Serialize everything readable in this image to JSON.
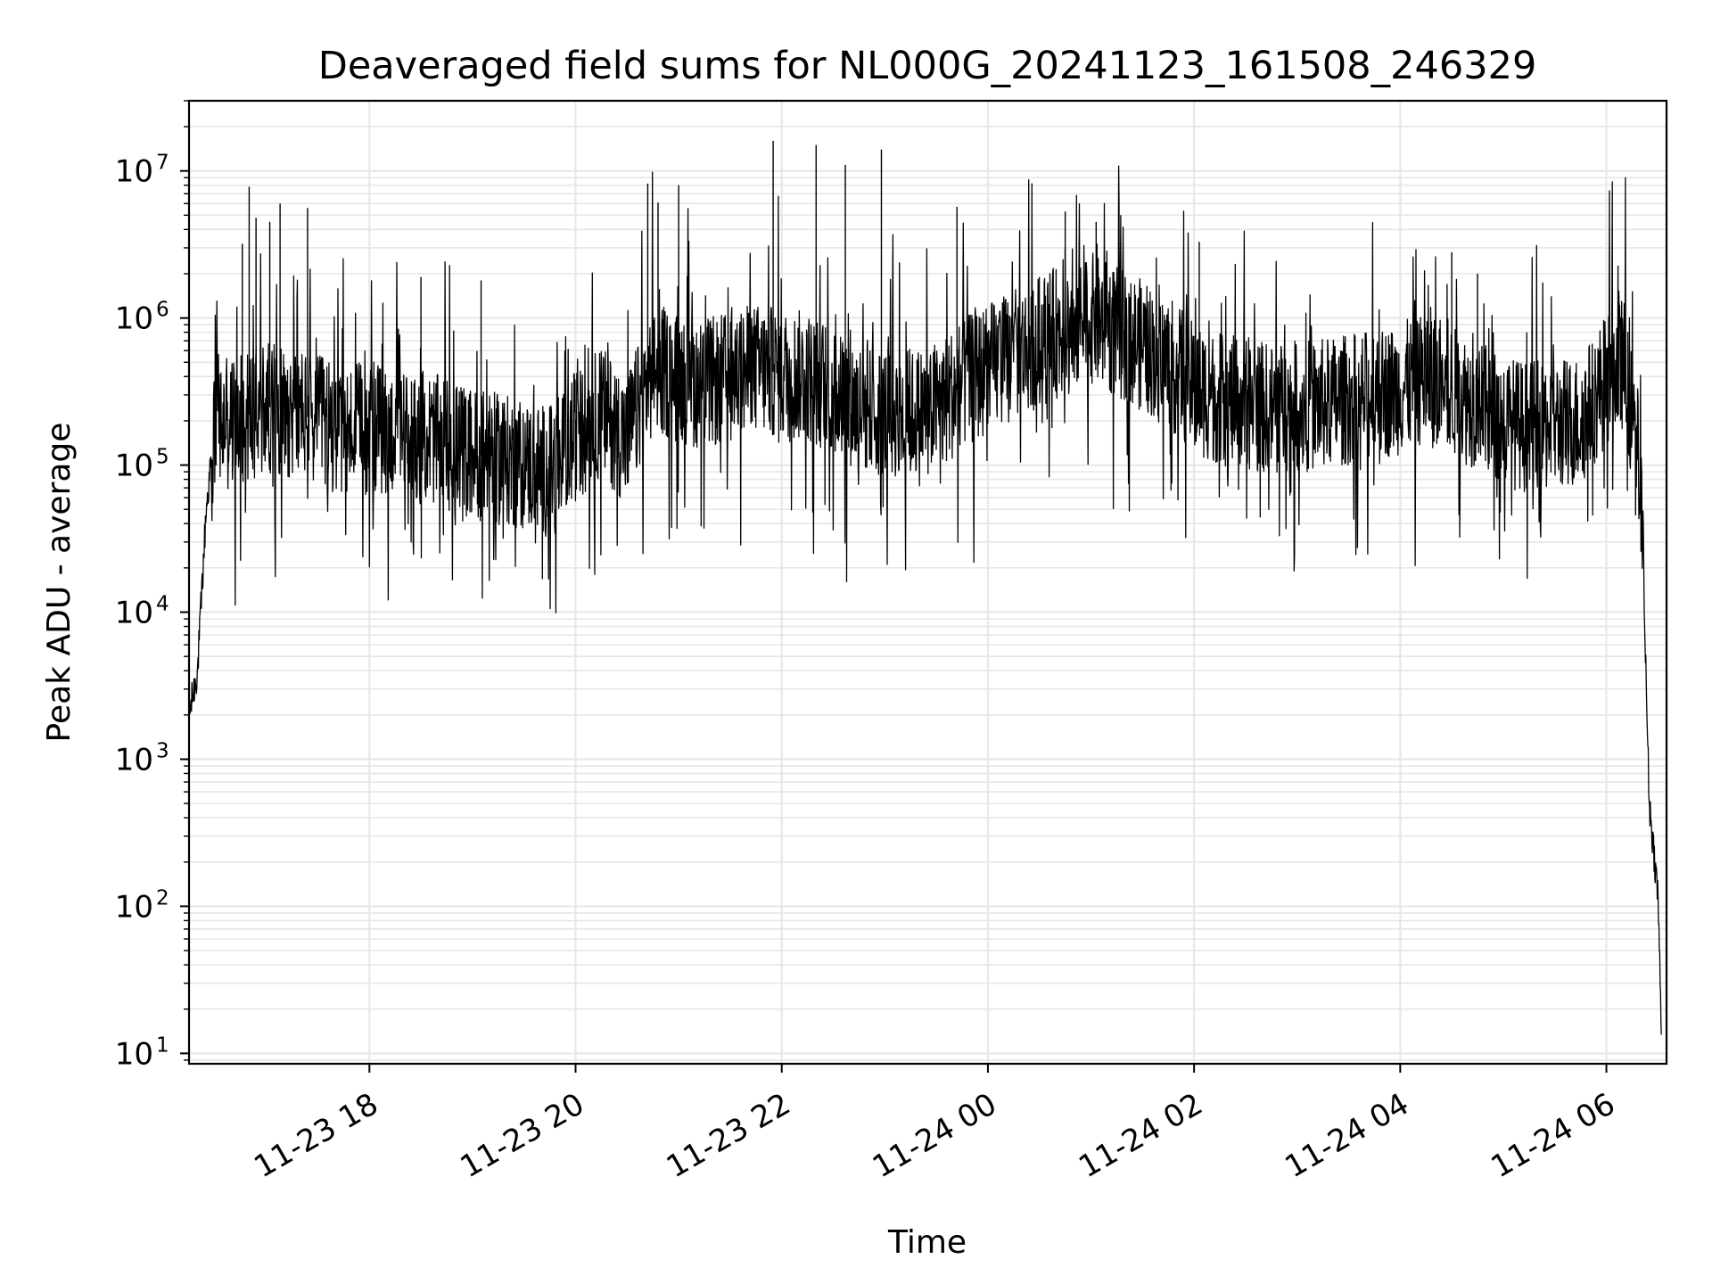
{
  "chart_data": {
    "type": "line",
    "title": "Deaveraged field sums for NL000G_20241123_161508_246329",
    "xlabel": "Time",
    "ylabel": "Peak ADU - average",
    "yscale": "log",
    "ylim": [
      8.5,
      30000000
    ],
    "xlim": [
      "2024-11-23 16:15",
      "2024-11-24 06:35"
    ],
    "grid": true,
    "line_color": "#000000",
    "grid_color": "#e6e6e6",
    "x_ticks": [
      {
        "time": "2024-11-23 18:00",
        "label": "11-23 18"
      },
      {
        "time": "2024-11-23 20:00",
        "label": "11-23 20"
      },
      {
        "time": "2024-11-23 22:00",
        "label": "11-23 22"
      },
      {
        "time": "2024-11-24 00:00",
        "label": "11-24 00"
      },
      {
        "time": "2024-11-24 02:00",
        "label": "11-24 02"
      },
      {
        "time": "2024-11-24 04:00",
        "label": "11-24 04"
      },
      {
        "time": "2024-11-24 06:00",
        "label": "11-24 06"
      }
    ],
    "y_ticks": [
      {
        "value": 10,
        "base": "10",
        "exp": "1"
      },
      {
        "value": 100,
        "base": "10",
        "exp": "2"
      },
      {
        "value": 1000,
        "base": "10",
        "exp": "3"
      },
      {
        "value": 10000,
        "base": "10",
        "exp": "4"
      },
      {
        "value": 100000,
        "base": "10",
        "exp": "5"
      },
      {
        "value": 1000000,
        "base": "10",
        "exp": "6"
      },
      {
        "value": 10000000,
        "base": "10",
        "exp": "7"
      }
    ],
    "series": [
      {
        "x": [
          "2024-11-23 16:15",
          "2024-11-23 16:20",
          "2024-11-23 16:25",
          "2024-11-23 16:30",
          "2024-11-23 16:40",
          "2024-11-23 16:50",
          "2024-11-23 17:00",
          "2024-11-23 17:15",
          "2024-11-23 17:30",
          "2024-11-23 17:45",
          "2024-11-23 18:00",
          "2024-11-23 18:15",
          "2024-11-23 18:30",
          "2024-11-23 18:45",
          "2024-11-23 19:00",
          "2024-11-23 19:15",
          "2024-11-23 19:30",
          "2024-11-23 19:45",
          "2024-11-23 20:00",
          "2024-11-23 20:15",
          "2024-11-23 20:30",
          "2024-11-23 20:45",
          "2024-11-23 21:00",
          "2024-11-23 21:15",
          "2024-11-23 21:30",
          "2024-11-23 21:45",
          "2024-11-23 22:00",
          "2024-11-23 22:15",
          "2024-11-23 22:30",
          "2024-11-23 22:45",
          "2024-11-23 23:00",
          "2024-11-23 23:15",
          "2024-11-23 23:30",
          "2024-11-23 23:45",
          "2024-11-24 00:00",
          "2024-11-24 00:15",
          "2024-11-24 00:30",
          "2024-11-24 00:45",
          "2024-11-24 01:00",
          "2024-11-24 01:15",
          "2024-11-24 01:30",
          "2024-11-24 01:45",
          "2024-11-24 02:00",
          "2024-11-24 02:15",
          "2024-11-24 02:30",
          "2024-11-24 02:45",
          "2024-11-24 03:00",
          "2024-11-24 03:15",
          "2024-11-24 03:30",
          "2024-11-24 03:45",
          "2024-11-24 04:00",
          "2024-11-24 04:15",
          "2024-11-24 04:30",
          "2024-11-24 04:45",
          "2024-11-24 05:00",
          "2024-11-24 05:15",
          "2024-11-24 05:30",
          "2024-11-24 05:45",
          "2024-11-24 06:00",
          "2024-11-24 06:10",
          "2024-11-24 06:20",
          "2024-11-24 06:25",
          "2024-11-24 06:30",
          "2024-11-24 06:32"
        ],
        "y": [
          2000,
          4000,
          50000,
          180000,
          200000,
          220000,
          250000,
          230000,
          200000,
          170000,
          180000,
          170000,
          160000,
          140000,
          120000,
          110000,
          100000,
          90000,
          160000,
          230000,
          150000,
          450000,
          400000,
          350000,
          400000,
          450000,
          420000,
          400000,
          330000,
          250000,
          230000,
          220000,
          250000,
          350000,
          450000,
          550000,
          700000,
          850000,
          1000000,
          800000,
          650000,
          500000,
          330000,
          280000,
          260000,
          240000,
          250000,
          260000,
          280000,
          300000,
          330000,
          400000,
          320000,
          250000,
          200000,
          180000,
          190000,
          200000,
          380000,
          500000,
          80000,
          500,
          120,
          15
        ],
        "spikes": [
          {
            "x": "2024-11-23 16:46",
            "y": 3200000
          },
          {
            "x": "2024-11-23 16:50",
            "y": 7800000
          },
          {
            "x": "2024-11-23 16:54",
            "y": 4800000
          },
          {
            "x": "2024-11-23 17:02",
            "y": 4500000
          },
          {
            "x": "2024-11-23 17:08",
            "y": 6000000
          },
          {
            "x": "2024-11-23 17:24",
            "y": 5600000
          },
          {
            "x": "2024-11-23 18:30",
            "y": 1900000
          },
          {
            "x": "2024-11-23 19:05",
            "y": 1800000
          },
          {
            "x": "2024-11-23 20:42",
            "y": 8200000
          },
          {
            "x": "2024-11-23 20:48",
            "y": 6100000
          },
          {
            "x": "2024-11-23 21:00",
            "y": 8000000
          },
          {
            "x": "2024-11-23 21:55",
            "y": 16000000
          },
          {
            "x": "2024-11-23 22:20",
            "y": 15000000
          },
          {
            "x": "2024-11-23 22:37",
            "y": 11000000
          },
          {
            "x": "2024-11-23 22:58",
            "y": 14000000
          },
          {
            "x": "2024-11-23 23:42",
            "y": 5700000
          },
          {
            "x": "2024-11-24 00:45",
            "y": 5300000
          },
          {
            "x": "2024-11-24 01:03",
            "y": 4500000
          },
          {
            "x": "2024-11-24 02:03",
            "y": 3300000
          },
          {
            "x": "2024-11-24 04:30",
            "y": 2800000
          },
          {
            "x": "2024-11-24 04:45",
            "y": 2000000
          }
        ]
      }
    ]
  }
}
